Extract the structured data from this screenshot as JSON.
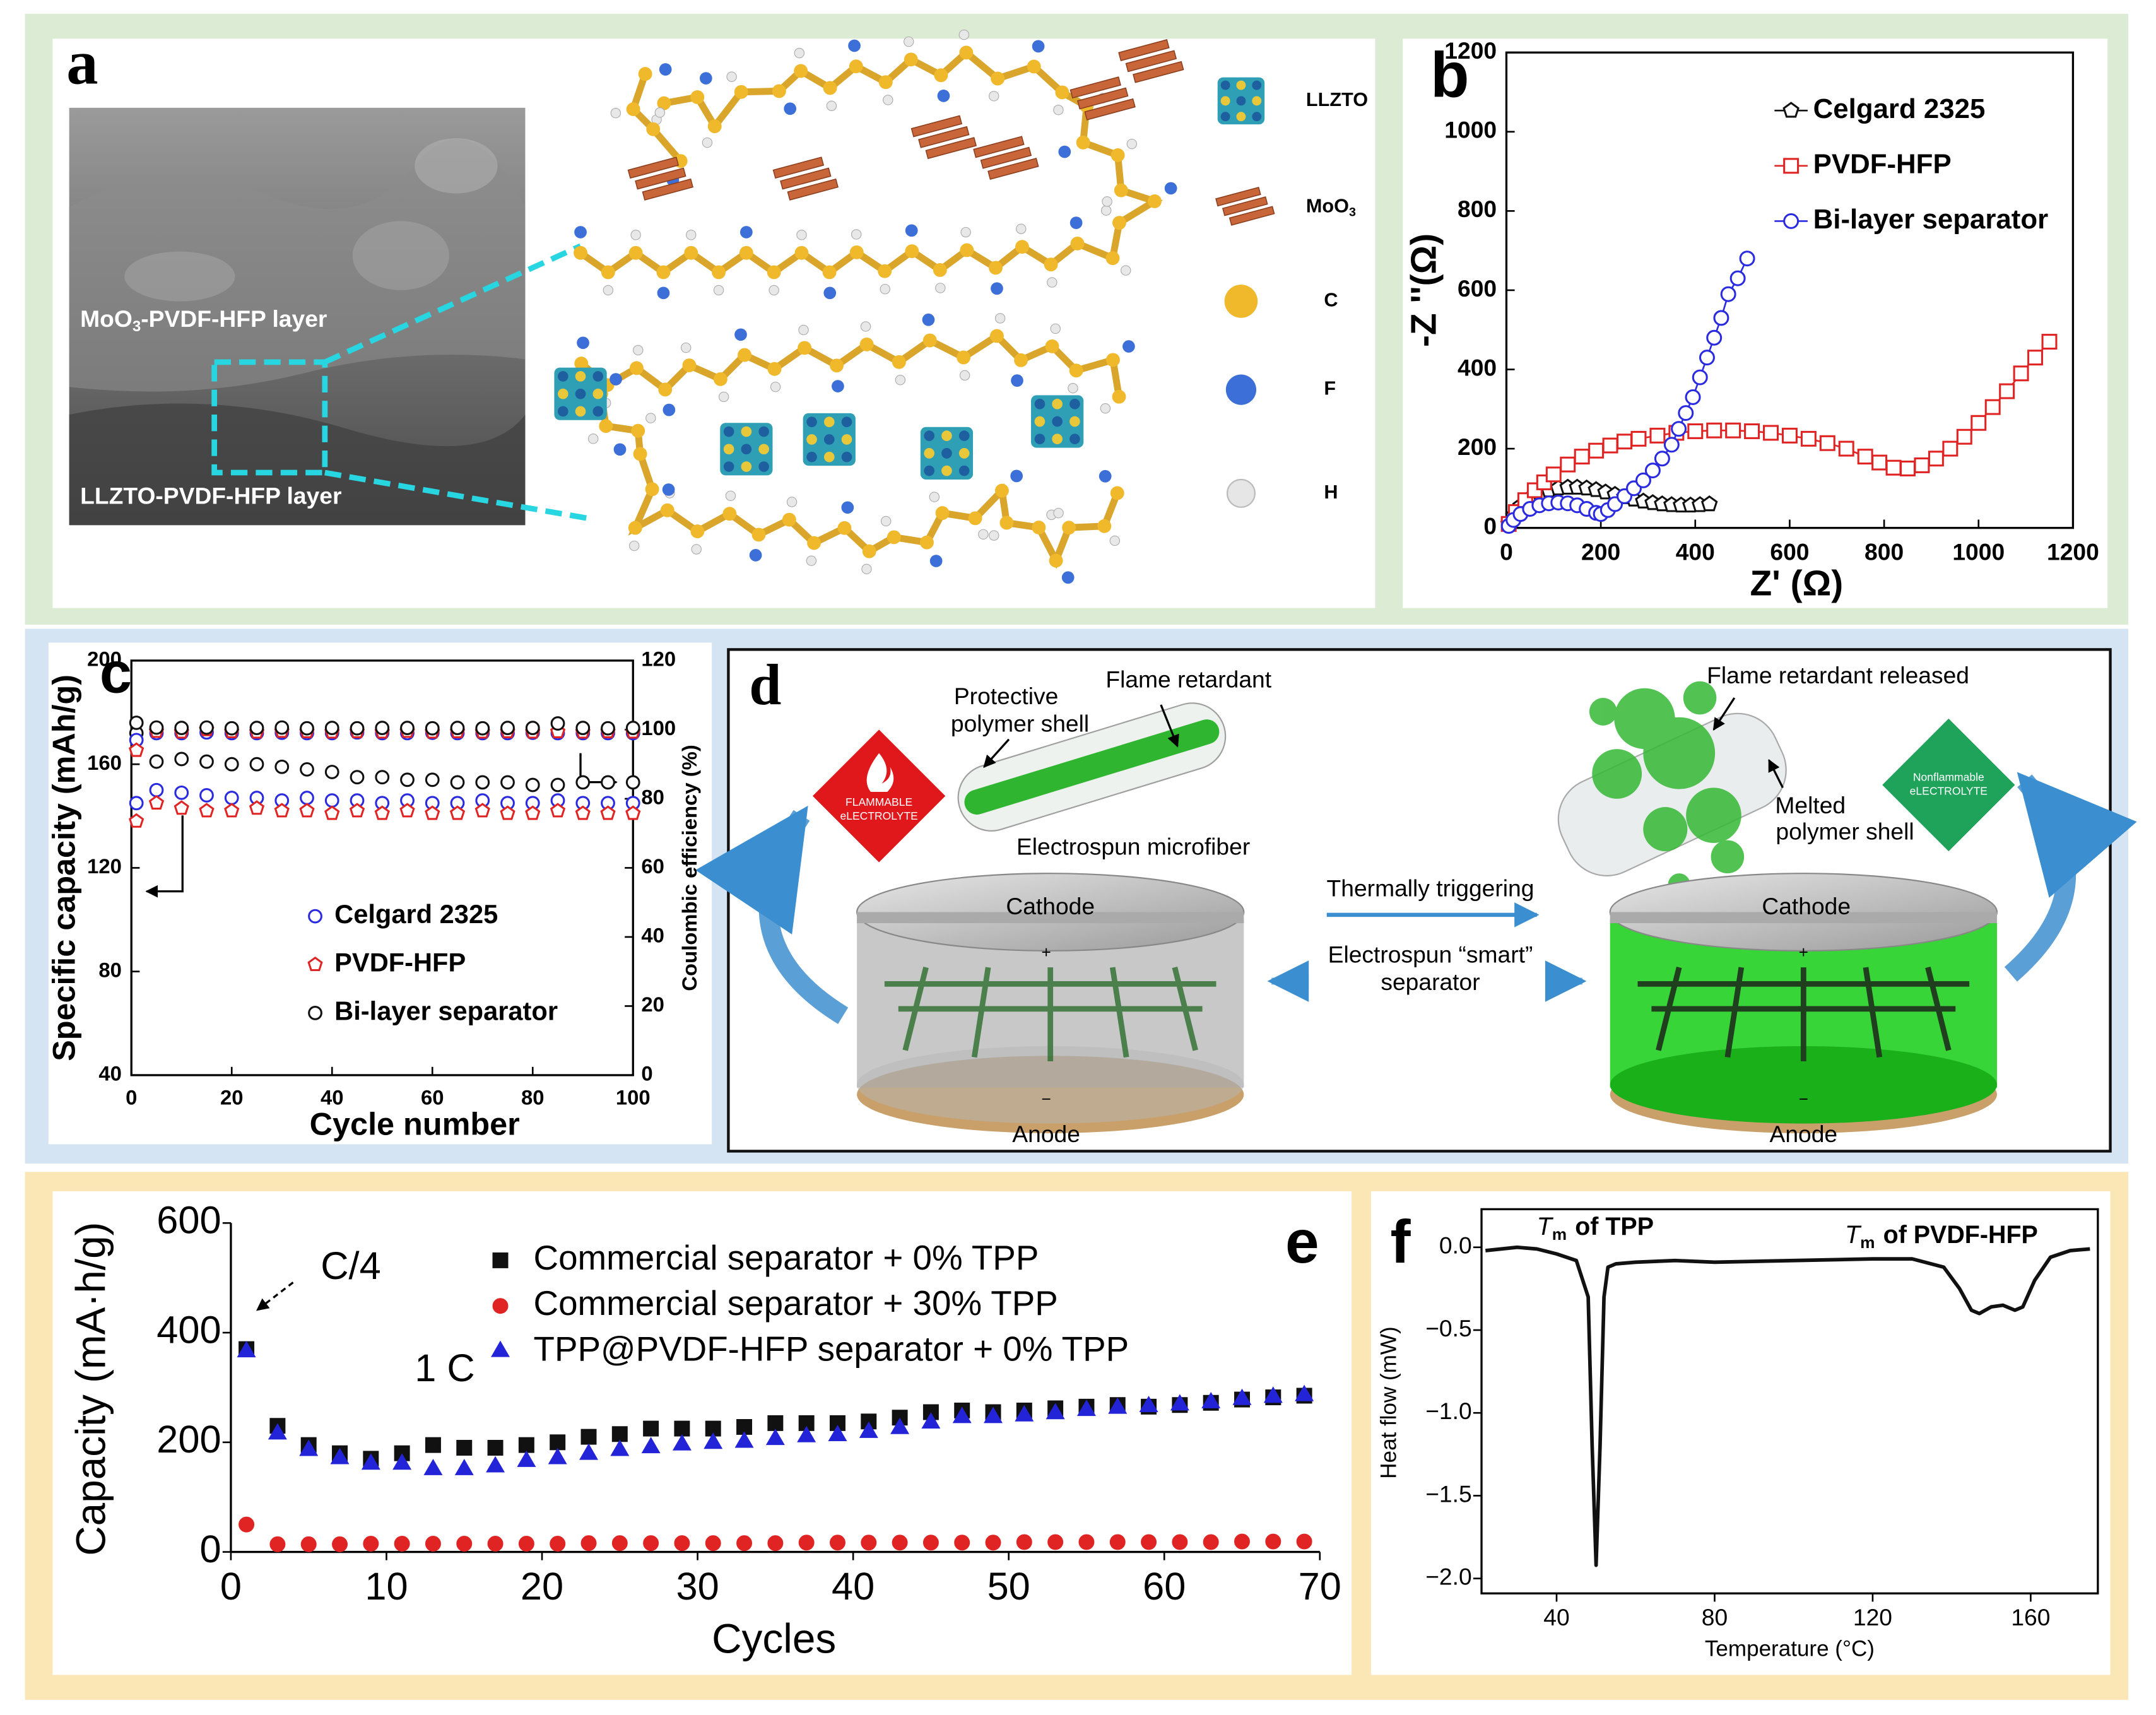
{
  "figure": {
    "panel_a": {
      "label": "a",
      "sem_top": {
        "main": "MoO",
        "sub": "3",
        "rest": "-PVDF-HFP layer"
      },
      "sem_bottom": "LLZTO-PVDF-HFP layer",
      "legend": [
        {
          "main": "LLZTO"
        },
        {
          "main": "MoO",
          "sub": "3"
        },
        {
          "main": "C"
        },
        {
          "main": "F"
        },
        {
          "main": "H"
        }
      ]
    },
    "panel_d": {
      "label": "d",
      "protective": [
        "Protective",
        "polymer shell"
      ],
      "flame_retardant": "Flame retardant",
      "microfiber": "Electrospun microfiber",
      "flammable": [
        "FLAMMABLE",
        "eLECTROLYTE"
      ],
      "cathode_left": "Cathode",
      "anode_left": "Anode",
      "trigger": "Thermally triggering",
      "smart": [
        "Electrospun “smart”",
        "separator"
      ],
      "released": "Flame retardant released",
      "melted": [
        "Melted",
        "polymer shell"
      ],
      "nonflammable": [
        "Nonflammable",
        "eLECTROLYTE"
      ],
      "cathode_right": "Cathode",
      "anode_right": "Anode",
      "terminals": [
        "+",
        "−"
      ]
    }
  },
  "chart_data": [
    {
      "type": "scatter",
      "panel_label": "b",
      "xlabel": "Z' (Ω)",
      "ylabel": "-Z ''(Ω)",
      "filled": false,
      "xlim": [
        0,
        1200
      ],
      "ylim": [
        0,
        1200
      ],
      "xticks": [
        0,
        200,
        400,
        600,
        800,
        1000,
        1200
      ],
      "yticks": [
        0,
        200,
        400,
        600,
        800,
        1000,
        1200
      ],
      "series": [
        {
          "name": "Celgard 2325",
          "color": "#111111",
          "marker": "pentagon",
          "line": true,
          "x": [
            5,
            15,
            30,
            50,
            70,
            90,
            110,
            130,
            150,
            170,
            190,
            210,
            230,
            250,
            270,
            290,
            310,
            330,
            350,
            370,
            390,
            410,
            430
          ],
          "values": [
            10,
            30,
            55,
            75,
            88,
            95,
            100,
            102,
            102,
            100,
            96,
            90,
            84,
            78,
            72,
            67,
            63,
            60,
            58,
            57,
            57,
            58,
            60
          ]
        },
        {
          "name": "PVDF-HFP",
          "color": "#e02424",
          "marker": "square",
          "line": true,
          "x": [
            5,
            20,
            40,
            60,
            80,
            100,
            130,
            160,
            190,
            220,
            250,
            280,
            320,
            360,
            400,
            440,
            480,
            520,
            560,
            600,
            640,
            680,
            720,
            760,
            790,
            820,
            850,
            880,
            910,
            940,
            970,
            1000,
            1030,
            1060,
            1090,
            1120,
            1150
          ],
          "values": [
            10,
            40,
            70,
            95,
            115,
            135,
            160,
            180,
            195,
            208,
            218,
            225,
            233,
            240,
            244,
            246,
            246,
            244,
            240,
            233,
            225,
            214,
            200,
            180,
            165,
            152,
            150,
            158,
            175,
            200,
            230,
            265,
            305,
            345,
            390,
            430,
            470
          ]
        },
        {
          "name": "Bi-layer separator",
          "color": "#2a2ae0",
          "marker": "circle",
          "line": true,
          "x": [
            5,
            15,
            30,
            50,
            70,
            90,
            110,
            130,
            150,
            170,
            190,
            200,
            215,
            230,
            250,
            270,
            290,
            310,
            330,
            350,
            365,
            380,
            395,
            410,
            425,
            440,
            455,
            470,
            490,
            510
          ],
          "values": [
            5,
            20,
            35,
            48,
            57,
            62,
            64,
            62,
            57,
            48,
            38,
            35,
            45,
            60,
            80,
            100,
            120,
            145,
            175,
            210,
            250,
            290,
            330,
            380,
            430,
            480,
            530,
            590,
            630,
            680
          ]
        }
      ]
    },
    {
      "type": "scatter",
      "panel_label": "c",
      "xlabel": "Cycle number",
      "ylabel": "Specific capacity (mAh/g)",
      "y2label": "Coulombic efficiency (%)",
      "filled": false,
      "xlim": [
        0,
        100
      ],
      "ylim": [
        40,
        200
      ],
      "y2lim": [
        0,
        120
      ],
      "xticks": [
        0,
        20,
        40,
        60,
        80,
        100
      ],
      "yticks": [
        40,
        80,
        120,
        160,
        200
      ],
      "y2ticks": [
        0,
        20,
        40,
        60,
        80,
        100,
        120
      ],
      "x": [
        1,
        5,
        10,
        15,
        20,
        25,
        30,
        35,
        40,
        45,
        50,
        55,
        60,
        65,
        70,
        75,
        80,
        85,
        90,
        95,
        100
      ],
      "series": [
        {
          "name": "Celgard 2325",
          "color": "#2a2ae0",
          "marker": "circle",
          "values": [
            145,
            150,
            149,
            148,
            147,
            147,
            146,
            147,
            146,
            146,
            145,
            146,
            145,
            145,
            146,
            145,
            145,
            146,
            145,
            145,
            145
          ]
        },
        {
          "name": "PVDF-HFP",
          "color": "#e02424",
          "marker": "pentagon",
          "values": [
            138,
            145,
            143,
            142,
            142,
            143,
            142,
            142,
            141,
            142,
            141,
            142,
            141,
            141,
            142,
            141,
            141,
            142,
            141,
            141,
            141
          ]
        },
        {
          "name": "Bi-layer separator",
          "color": "#111111",
          "marker": "circle",
          "values": [
            172,
            161,
            162,
            161,
            160,
            160,
            159,
            158,
            157,
            155,
            155,
            154,
            154,
            153,
            153,
            153,
            152,
            152,
            153,
            153,
            153
          ]
        },
        {
          "color": "#2a2ae0",
          "marker": "circle",
          "axis": "y2",
          "values": [
            97,
            99,
            99,
            99.2,
            99,
            99,
            99.1,
            99,
            99,
            99.2,
            99,
            99,
            99.1,
            99,
            99,
            99,
            99.1,
            99,
            99,
            99,
            99
          ]
        },
        {
          "color": "#e02424",
          "marker": "pentagon",
          "axis": "y2",
          "values": [
            94,
            99.5,
            99.3,
            100,
            99.4,
            99.3,
            99.5,
            99.4,
            99.3,
            99.4,
            99.3,
            99.5,
            99.3,
            99.4,
            99.3,
            99.4,
            99.3,
            99.4,
            99.3,
            99.4,
            99.3
          ]
        },
        {
          "color": "#111111",
          "marker": "circle",
          "axis": "y2",
          "values": [
            102,
            100.6,
            100.5,
            100.6,
            100.4,
            100.5,
            100.6,
            100.4,
            100.5,
            100.4,
            100.5,
            100.5,
            100.4,
            100.5,
            100.4,
            100.5,
            100.5,
            101.8,
            100.5,
            100.4,
            100.5
          ]
        }
      ]
    },
    {
      "type": "scatter",
      "panel_label": "e",
      "xlabel": "Cycles",
      "ylabel": "Capacity (mA·h/g)",
      "filled": true,
      "annotations": [
        "C/4",
        "1 C"
      ],
      "xlim": [
        0,
        70
      ],
      "ylim": [
        0,
        600
      ],
      "xticks": [
        0,
        10,
        20,
        30,
        40,
        50,
        60,
        70
      ],
      "yticks": [
        0,
        200,
        400,
        600
      ],
      "x": [
        1,
        3,
        5,
        7,
        9,
        11,
        13,
        15,
        17,
        19,
        21,
        23,
        25,
        27,
        29,
        31,
        33,
        35,
        37,
        39,
        41,
        43,
        45,
        47,
        49,
        51,
        53,
        55,
        57,
        59,
        61,
        63,
        65,
        67,
        69
      ],
      "series": [
        {
          "name": "Commercial separator + 0% TPP",
          "color": "#111111",
          "marker": "square",
          "values": [
            370,
            230,
            195,
            180,
            170,
            180,
            195,
            190,
            190,
            195,
            200,
            210,
            215,
            225,
            225,
            225,
            228,
            235,
            235,
            235,
            238,
            245,
            255,
            258,
            255,
            258,
            262,
            265,
            268,
            265,
            268,
            272,
            278,
            282,
            285
          ]
        },
        {
          "name": "Commercial separator + 30% TPP",
          "color": "#e02424",
          "marker": "circle",
          "values": [
            50,
            14,
            14,
            14,
            15,
            15,
            15,
            15,
            15,
            15,
            15,
            16,
            16,
            16,
            16,
            16,
            16,
            16,
            17,
            17,
            17,
            17,
            17,
            17,
            17,
            18,
            18,
            18,
            18,
            18,
            18,
            18,
            19,
            19,
            19
          ]
        },
        {
          "name": "TPP@PVDF-HFP separator + 0% TPP",
          "color": "#2323d8",
          "marker": "triangle",
          "values": [
            365,
            215,
            185,
            170,
            160,
            160,
            150,
            150,
            155,
            165,
            170,
            178,
            185,
            190,
            195,
            198,
            200,
            205,
            210,
            212,
            218,
            225,
            235,
            245,
            245,
            248,
            252,
            258,
            262,
            265,
            268,
            272,
            278,
            282,
            285
          ]
        }
      ]
    },
    {
      "type": "line",
      "panel_label": "f",
      "xlabel": "Temperature (°C)",
      "ylabel": "Heat flow (mW)",
      "color": "#111111",
      "annotations": [
        {
          "symbol": "T",
          "sub": "m",
          "text": "of TPP"
        },
        {
          "symbol": "T",
          "sub": "m",
          "text": "of PVDF-HFP"
        }
      ],
      "xlim": [
        21,
        177
      ],
      "ylim": [
        -2.09,
        0.23
      ],
      "xticks": [
        40,
        80,
        120,
        160
      ],
      "yticks": [
        {
          "value": -2.0,
          "label": "−2.0"
        },
        {
          "value": -1.5,
          "label": "−1.5"
        },
        {
          "value": -1.0,
          "label": "−1.0"
        },
        {
          "value": -0.5,
          "label": "−0.5"
        },
        {
          "value": 0.0,
          "label": "0.0"
        }
      ],
      "x": [
        22,
        30,
        35,
        40,
        45,
        48,
        49,
        50,
        51,
        52,
        53,
        55,
        60,
        70,
        80,
        100,
        120,
        130,
        138,
        142,
        145,
        147,
        150,
        153,
        156,
        158,
        161,
        165,
        170,
        175
      ],
      "values": [
        -0.02,
        0.0,
        -0.01,
        -0.04,
        -0.08,
        -0.3,
        -1.2,
        -1.92,
        -1.2,
        -0.3,
        -0.12,
        -0.1,
        -0.09,
        -0.08,
        -0.09,
        -0.08,
        -0.07,
        -0.07,
        -0.12,
        -0.25,
        -0.38,
        -0.4,
        -0.36,
        -0.35,
        -0.38,
        -0.36,
        -0.2,
        -0.06,
        -0.02,
        -0.01
      ]
    }
  ]
}
